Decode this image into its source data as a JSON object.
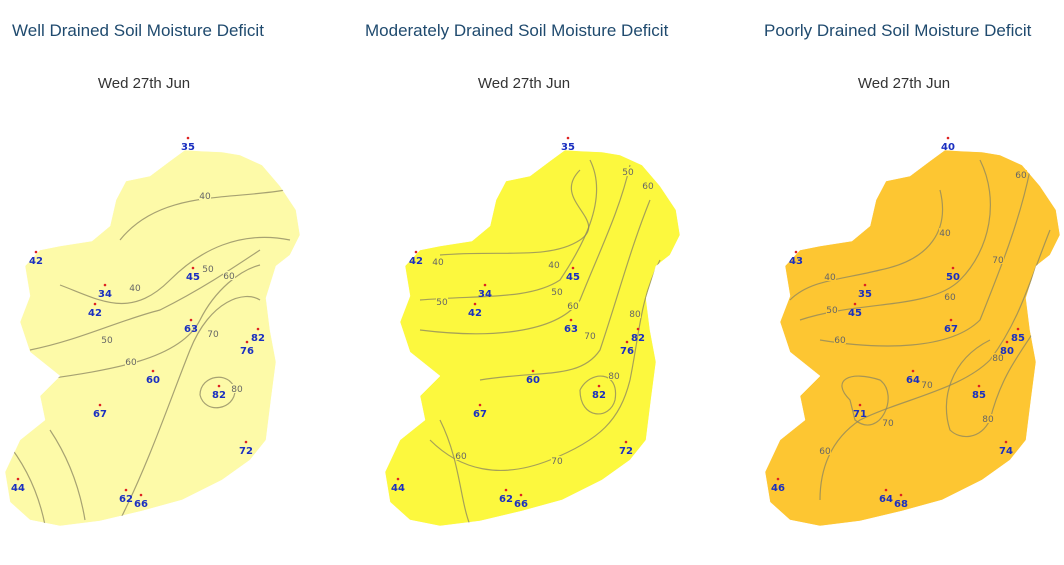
{
  "panels": [
    {
      "title": "Well Drained Soil Moisture Deficit",
      "date": "Wed 27th Jun",
      "stations": [
        35,
        42,
        34,
        42,
        45,
        63,
        82,
        76,
        60,
        82,
        67,
        72,
        44,
        62,
        66
      ],
      "contour_labels": [
        "40",
        "50",
        "60",
        "40",
        "50",
        "70",
        "60",
        "80"
      ]
    },
    {
      "title": "Moderately Drained Soil Moisture Deficit",
      "date": "Wed 27th Jun",
      "stations": [
        35,
        42,
        34,
        42,
        45,
        63,
        82,
        76,
        60,
        82,
        67,
        72,
        44,
        62,
        66
      ],
      "contour_labels": [
        "50",
        "60",
        "40",
        "40",
        "50",
        "50",
        "60",
        "70",
        "80",
        "80",
        "60",
        "70"
      ]
    },
    {
      "title": "Poorly Drained Soil Moisture Deficit",
      "date": "Wed 27th Jun",
      "stations": [
        40,
        43,
        35,
        45,
        50,
        67,
        85,
        80,
        64,
        85,
        71,
        74,
        46,
        64,
        68
      ],
      "contour_labels": [
        "60",
        "40",
        "70",
        "40",
        "60",
        "50",
        "60",
        "80",
        "70",
        "70",
        "80",
        "60"
      ]
    }
  ]
}
